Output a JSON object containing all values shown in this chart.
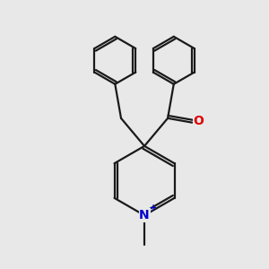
{
  "bg_color": "#e8e8e8",
  "line_color": "#1a1a1a",
  "o_color": "#dd0000",
  "n_color": "#0000cc",
  "line_width": 1.6,
  "figsize": [
    3.0,
    3.0
  ],
  "dpi": 100
}
